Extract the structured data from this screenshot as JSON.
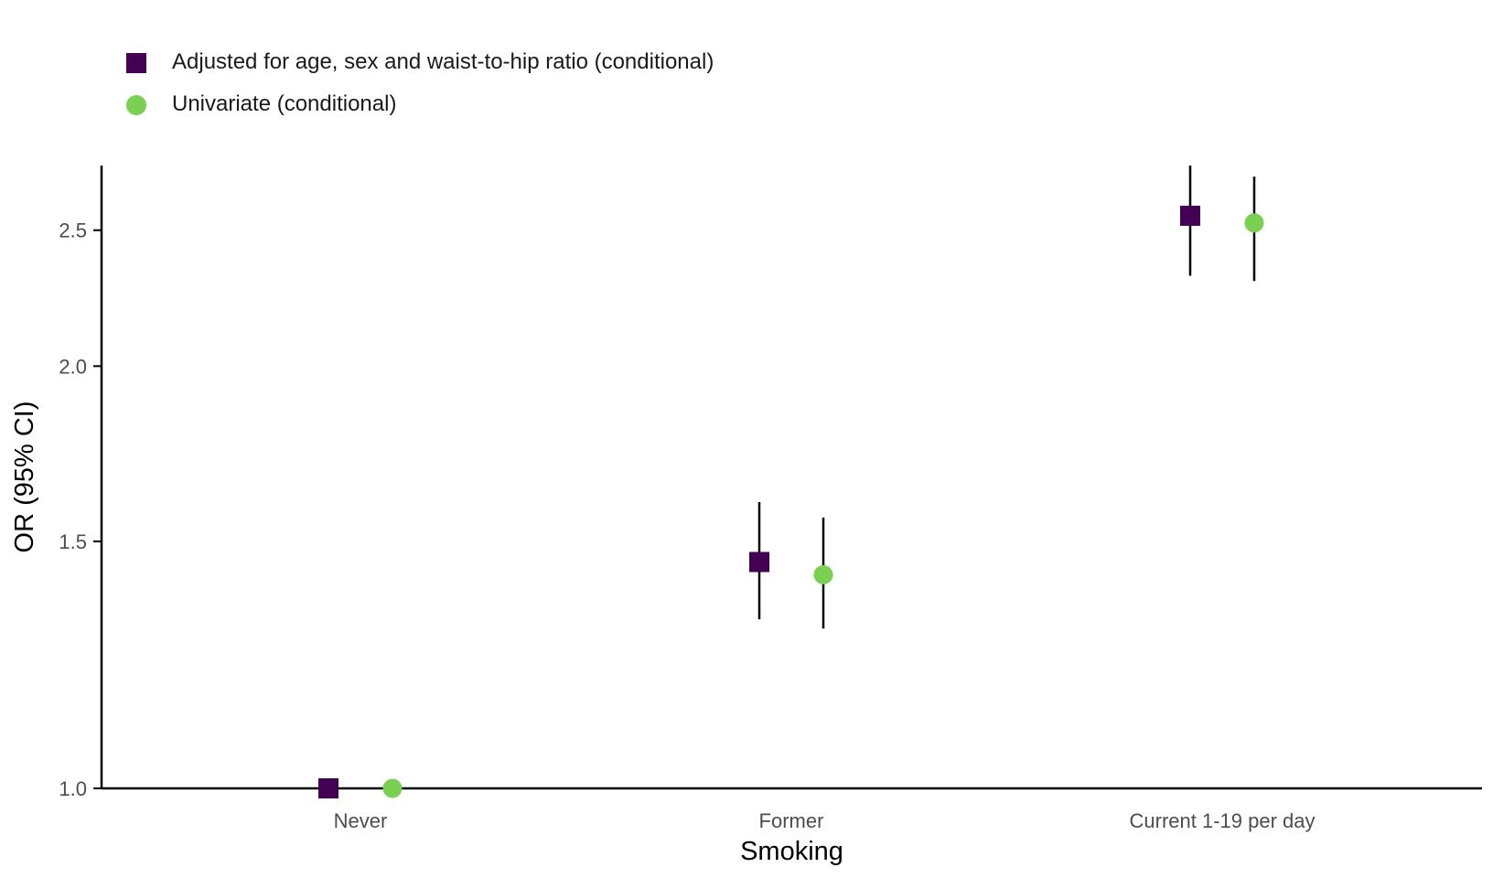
{
  "legend": {
    "items": [
      {
        "label": "Adjusted for age, sex and waist-to-hip ratio (conditional)"
      },
      {
        "label": "Univariate (conditional)"
      }
    ]
  },
  "chart_data": {
    "type": "scatter",
    "subtype": "forest plot with error bars",
    "xlabel": "Smoking",
    "ylabel": "OR (95% CI)",
    "y_scale": "log",
    "ylim": [
      1.0,
      2.78
    ],
    "y_ticks": [
      "1.0",
      "1.5",
      "2.0",
      "2.5"
    ],
    "categories": [
      "Never",
      "Former",
      "Current 1-19 per day"
    ],
    "legend_position": "top-left",
    "grid": false,
    "series": [
      {
        "name": "Adjusted for age, sex and waist-to-hip ratio (conditional)",
        "marker": "square",
        "color": "#440154",
        "values": [
          1.0,
          1.45,
          2.56
        ],
        "ci_low": [
          null,
          1.32,
          2.32
        ],
        "ci_high": [
          null,
          1.6,
          2.78
        ]
      },
      {
        "name": "Univariate (conditional)",
        "marker": "circle",
        "color": "#7AD151",
        "values": [
          1.0,
          1.42,
          2.53
        ],
        "ci_low": [
          null,
          1.3,
          2.3
        ],
        "ci_high": [
          null,
          1.56,
          2.73
        ]
      }
    ]
  }
}
